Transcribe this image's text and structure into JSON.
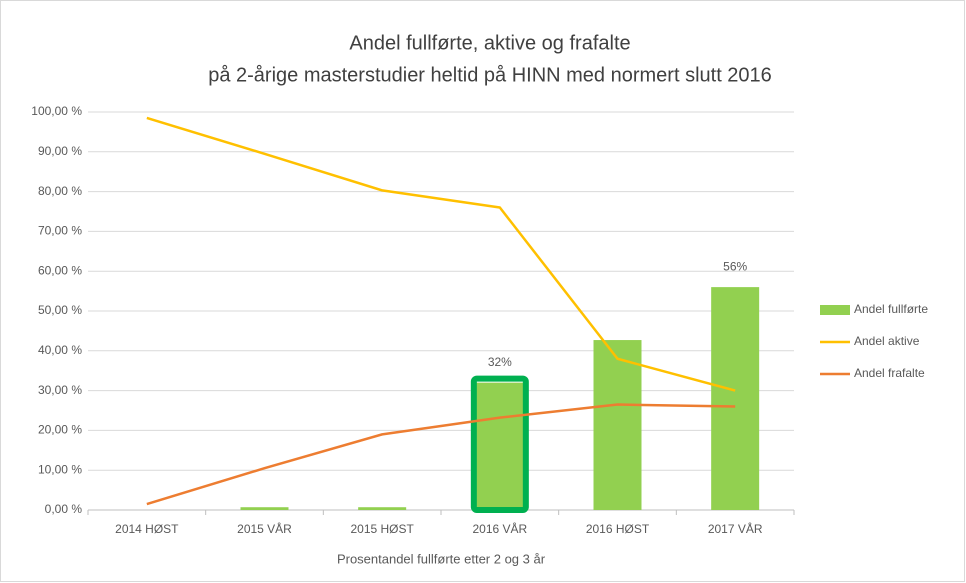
{
  "chart_data": {
    "type": "combo",
    "title": "Andel fullførte, aktive og frafalte",
    "subtitle": "på 2-årige masterstudier heltid på HINN med normert slutt 2016",
    "x_label": "Prosentandel fullførte etter 2 og 3 år",
    "categories": [
      "2014 HØST",
      "2015 VÅR",
      "2015 HØST",
      "2016 VÅR",
      "2016 HØST",
      "2017 VÅR"
    ],
    "series": [
      {
        "name": "Andel fullførte",
        "type": "bar",
        "color": "#92d050",
        "values": [
          0,
          0.7,
          0.7,
          32,
          42.7,
          56
        ],
        "value_labels": [
          null,
          null,
          null,
          "32%",
          null,
          "56%"
        ]
      },
      {
        "name": "Andel aktive",
        "type": "line",
        "color": "#ffc000",
        "values": [
          98.5,
          89.5,
          80.3,
          76,
          38,
          30
        ]
      },
      {
        "name": "Andel frafalte",
        "type": "line",
        "color": "#ed7d31",
        "values": [
          1.5,
          10.5,
          19,
          23.2,
          26.5,
          26
        ]
      }
    ],
    "highlight": {
      "series": 0,
      "index": 3,
      "color": "#00b050"
    },
    "ylim": [
      0,
      100
    ],
    "yticks": [
      {
        "value": 0,
        "label": "0,00 %"
      },
      {
        "value": 10,
        "label": "10,00 %"
      },
      {
        "value": 20,
        "label": "20,00 %"
      },
      {
        "value": 30,
        "label": "30,00 %"
      },
      {
        "value": 40,
        "label": "40,00 %"
      },
      {
        "value": 50,
        "label": "50,00 %"
      },
      {
        "value": 60,
        "label": "60,00 %"
      },
      {
        "value": 70,
        "label": "70,00 %"
      },
      {
        "value": 80,
        "label": "80,00 %"
      },
      {
        "value": 90,
        "label": "90,00 %"
      },
      {
        "value": 100,
        "label": "100,00 %"
      }
    ],
    "grid": true,
    "legend": "right"
  }
}
